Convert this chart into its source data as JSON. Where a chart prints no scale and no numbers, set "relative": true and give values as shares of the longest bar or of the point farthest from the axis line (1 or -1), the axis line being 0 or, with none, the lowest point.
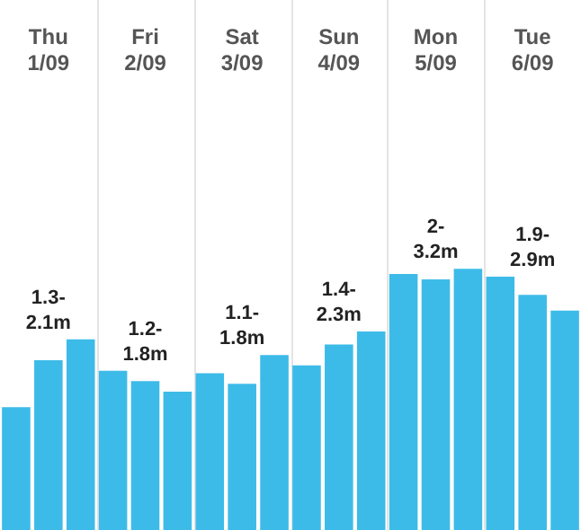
{
  "chart_data": {
    "type": "bar",
    "relative": true,
    "color": "#3dbbe8",
    "grid": "x",
    "categories": [
      null,
      "Thu 1/09",
      null,
      null,
      "Fri 2/09",
      null,
      null,
      "Sat 3/09",
      null,
      null,
      "Sun 4/09",
      null,
      null,
      "Mon 5/09",
      null,
      null,
      "Tue 6/09",
      null
    ],
    "values": [
      0.47,
      0.65,
      0.73,
      0.61,
      0.57,
      0.53,
      0.6,
      0.56,
      0.67,
      0.63,
      0.71,
      0.76,
      0.98,
      0.96,
      1,
      0.97,
      0.9,
      0.84
    ],
    "annotations": [
      "1.3-2.1m",
      "1.2-1.8m",
      "1.1-1.8m",
      "1.4-2.3m",
      "2-3.2m",
      "1.9-2.9m"
    ]
  }
}
